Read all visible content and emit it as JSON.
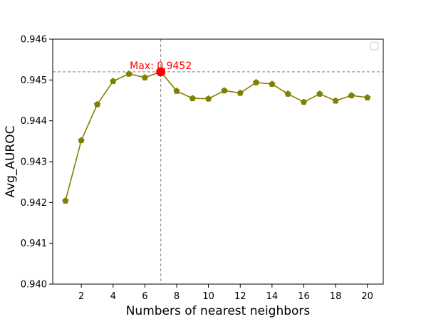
{
  "chart_data": {
    "type": "line",
    "title": "",
    "xlabel": "Numbers of nearest neighbors",
    "ylabel": "Avg_AUROC",
    "xlim": [
      0.2,
      21
    ],
    "ylim": [
      0.94,
      0.946
    ],
    "xticks": [
      2,
      4,
      6,
      8,
      10,
      12,
      14,
      16,
      18,
      20
    ],
    "xtick_labels": [
      "2",
      "4",
      "6",
      "8",
      "10",
      "12",
      "14",
      "16",
      "18",
      "20"
    ],
    "yticks": [
      0.94,
      0.941,
      0.942,
      0.943,
      0.944,
      0.945,
      0.946
    ],
    "ytick_labels": [
      "0.940",
      "0.941",
      "0.942",
      "0.943",
      "0.944",
      "0.945",
      "0.946"
    ],
    "grid": false,
    "legend": "top-right, empty",
    "series": [
      {
        "color": "#808000",
        "marker": "pentagon",
        "x": [
          1,
          2,
          3,
          4,
          5,
          6,
          7,
          8,
          9,
          10,
          11,
          12,
          13,
          14,
          15,
          16,
          17,
          18,
          19,
          20
        ],
        "values": [
          0.94204,
          0.94352,
          0.9444,
          0.94497,
          0.94515,
          0.94506,
          0.9452,
          0.94473,
          0.94455,
          0.94454,
          0.94474,
          0.94468,
          0.94494,
          0.9449,
          0.94466,
          0.94446,
          0.94466,
          0.94449,
          0.94462,
          0.94457
        ]
      }
    ],
    "max_point": {
      "x": 7,
      "y": 0.9452,
      "label": "Max: 0.9452",
      "color": "#ff0000"
    },
    "reference_lines": {
      "vertical_x": 7,
      "horizontal_y": 0.9452,
      "color": "#808080",
      "style": "dashed"
    }
  }
}
